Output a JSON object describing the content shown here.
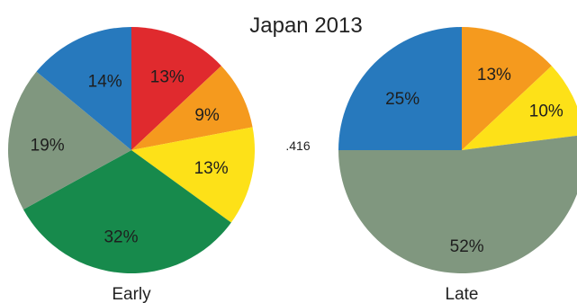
{
  "chart_data": {
    "type": "pie",
    "title": "Japan 2013",
    "annotation": ".416",
    "colors": {
      "blue": "#2779bd",
      "red": "#e02a2e",
      "orange": "#f59a1e",
      "yellow": "#fde118",
      "green": "#178a4c",
      "gray": "#80977f"
    },
    "pies": [
      {
        "label": "Early",
        "slices": [
          {
            "value": 13,
            "label": "13%",
            "color": "#e02a2e"
          },
          {
            "value": 9,
            "label": "9%",
            "color": "#f59a1e"
          },
          {
            "value": 13,
            "label": "13%",
            "color": "#fde118"
          },
          {
            "value": 32,
            "label": "32%",
            "color": "#178a4c"
          },
          {
            "value": 19,
            "label": "19%",
            "color": "#80977f"
          },
          {
            "value": 14,
            "label": "14%",
            "color": "#2779bd"
          }
        ]
      },
      {
        "label": "Late",
        "slices": [
          {
            "value": 13,
            "label": "13%",
            "color": "#f59a1e"
          },
          {
            "value": 10,
            "label": "10%",
            "color": "#fde118"
          },
          {
            "value": 52,
            "label": "52%",
            "color": "#80977f"
          },
          {
            "value": 25,
            "label": "25%",
            "color": "#2779bd"
          }
        ]
      }
    ]
  }
}
